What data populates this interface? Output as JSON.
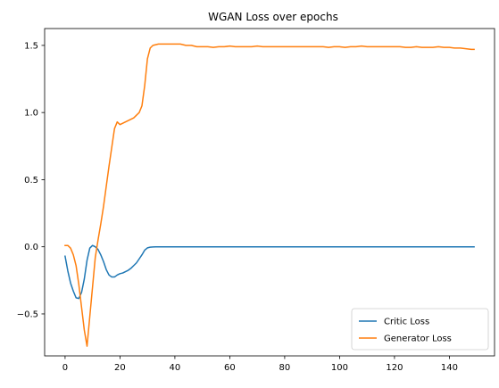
{
  "chart_data": {
    "type": "line",
    "title": "WGAN Loss over epochs",
    "xlabel": "",
    "ylabel": "",
    "xlim": [
      -7.45,
      156.45
    ],
    "ylim": [
      -0.8125,
      1.6255
    ],
    "xticks": [
      0,
      20,
      40,
      60,
      80,
      100,
      120,
      140
    ],
    "yticks": [
      -0.5,
      0.0,
      0.5,
      1.0,
      1.5
    ],
    "ytick_labels": [
      "−0.5",
      "0.0",
      "0.5",
      "1.0",
      "1.5"
    ],
    "grid": false,
    "legend": "bottom-right",
    "series": [
      {
        "name": "Critic Loss",
        "color": "#1f77b4",
        "points": [
          [
            0,
            -0.07
          ],
          [
            1,
            -0.18
          ],
          [
            2,
            -0.27
          ],
          [
            3,
            -0.33
          ],
          [
            4,
            -0.38
          ],
          [
            5,
            -0.385
          ],
          [
            6,
            -0.34
          ],
          [
            7,
            -0.24
          ],
          [
            8,
            -0.1
          ],
          [
            9,
            -0.01
          ],
          [
            10,
            0.01
          ],
          [
            11,
            0.0
          ],
          [
            12,
            -0.02
          ],
          [
            13,
            -0.06
          ],
          [
            14,
            -0.11
          ],
          [
            15,
            -0.17
          ],
          [
            16,
            -0.21
          ],
          [
            17,
            -0.225
          ],
          [
            18,
            -0.225
          ],
          [
            19,
            -0.21
          ],
          [
            20,
            -0.2
          ],
          [
            21,
            -0.195
          ],
          [
            22,
            -0.185
          ],
          [
            23,
            -0.175
          ],
          [
            24,
            -0.16
          ],
          [
            25,
            -0.14
          ],
          [
            26,
            -0.12
          ],
          [
            27,
            -0.09
          ],
          [
            28,
            -0.06
          ],
          [
            29,
            -0.025
          ],
          [
            30,
            -0.008
          ],
          [
            31,
            -0.003
          ],
          [
            32,
            -0.001
          ],
          [
            33,
            0.0
          ],
          [
            40,
            0.0
          ],
          [
            60,
            0.0
          ],
          [
            80,
            0.0
          ],
          [
            100,
            0.0
          ],
          [
            120,
            0.0
          ],
          [
            140,
            0.0
          ],
          [
            149,
            0.0
          ]
        ]
      },
      {
        "name": "Generator Loss",
        "color": "#ff7f0e",
        "points": [
          [
            0,
            0.01
          ],
          [
            1,
            0.01
          ],
          [
            2,
            -0.01
          ],
          [
            3,
            -0.06
          ],
          [
            4,
            -0.14
          ],
          [
            5,
            -0.28
          ],
          [
            6,
            -0.45
          ],
          [
            7,
            -0.62
          ],
          [
            8,
            -0.74
          ],
          [
            9,
            -0.52
          ],
          [
            10,
            -0.3
          ],
          [
            11,
            -0.08
          ],
          [
            12,
            0.05
          ],
          [
            13,
            0.17
          ],
          [
            14,
            0.3
          ],
          [
            15,
            0.45
          ],
          [
            16,
            0.6
          ],
          [
            17,
            0.74
          ],
          [
            18,
            0.88
          ],
          [
            19,
            0.93
          ],
          [
            20,
            0.91
          ],
          [
            21,
            0.92
          ],
          [
            22,
            0.93
          ],
          [
            23,
            0.94
          ],
          [
            24,
            0.95
          ],
          [
            25,
            0.96
          ],
          [
            26,
            0.98
          ],
          [
            27,
            1.0
          ],
          [
            28,
            1.05
          ],
          [
            29,
            1.2
          ],
          [
            30,
            1.4
          ],
          [
            31,
            1.48
          ],
          [
            32,
            1.5
          ],
          [
            33,
            1.505
          ],
          [
            34,
            1.51
          ],
          [
            36,
            1.51
          ],
          [
            38,
            1.51
          ],
          [
            40,
            1.51
          ],
          [
            42,
            1.51
          ],
          [
            44,
            1.5
          ],
          [
            46,
            1.5
          ],
          [
            48,
            1.49
          ],
          [
            50,
            1.49
          ],
          [
            52,
            1.49
          ],
          [
            54,
            1.485
          ],
          [
            56,
            1.49
          ],
          [
            58,
            1.49
          ],
          [
            60,
            1.495
          ],
          [
            62,
            1.49
          ],
          [
            64,
            1.49
          ],
          [
            66,
            1.49
          ],
          [
            68,
            1.49
          ],
          [
            70,
            1.495
          ],
          [
            72,
            1.49
          ],
          [
            74,
            1.49
          ],
          [
            76,
            1.49
          ],
          [
            78,
            1.49
          ],
          [
            80,
            1.49
          ],
          [
            82,
            1.49
          ],
          [
            84,
            1.49
          ],
          [
            86,
            1.49
          ],
          [
            88,
            1.49
          ],
          [
            90,
            1.49
          ],
          [
            92,
            1.49
          ],
          [
            94,
            1.49
          ],
          [
            96,
            1.485
          ],
          [
            98,
            1.49
          ],
          [
            100,
            1.49
          ],
          [
            102,
            1.485
          ],
          [
            104,
            1.49
          ],
          [
            106,
            1.49
          ],
          [
            108,
            1.495
          ],
          [
            110,
            1.49
          ],
          [
            112,
            1.49
          ],
          [
            114,
            1.49
          ],
          [
            116,
            1.49
          ],
          [
            118,
            1.49
          ],
          [
            120,
            1.49
          ],
          [
            122,
            1.49
          ],
          [
            124,
            1.485
          ],
          [
            126,
            1.485
          ],
          [
            128,
            1.49
          ],
          [
            130,
            1.485
          ],
          [
            132,
            1.485
          ],
          [
            134,
            1.485
          ],
          [
            136,
            1.49
          ],
          [
            138,
            1.485
          ],
          [
            140,
            1.485
          ],
          [
            142,
            1.48
          ],
          [
            144,
            1.48
          ],
          [
            146,
            1.475
          ],
          [
            148,
            1.47
          ],
          [
            149,
            1.47
          ]
        ]
      }
    ]
  }
}
